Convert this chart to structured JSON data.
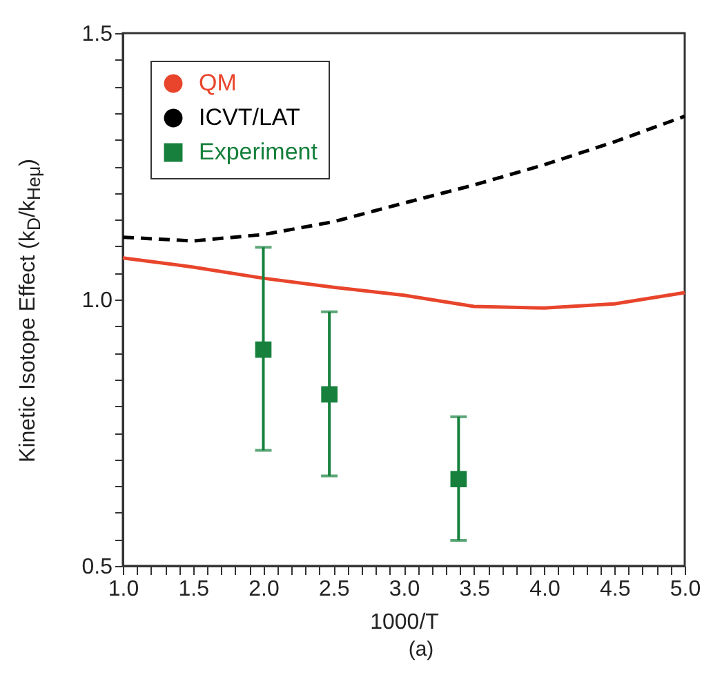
{
  "chart_data": {
    "type": "line",
    "xlabel": "1000/T",
    "ylabel": "Kinetic Isotope Effect (k$_{D}$/k$_{Heμ}$)",
    "annotations": [
      "(a)"
    ],
    "xlim": [
      1.0,
      5.0
    ],
    "ylim": [
      0.5,
      1.5
    ],
    "xticks": [
      {
        "value": 1,
        "label": "1.0"
      },
      {
        "value": 1.1,
        "label": null
      },
      {
        "value": 1.2,
        "label": null
      },
      {
        "value": 1.3,
        "label": null
      },
      {
        "value": 1.4,
        "label": null
      },
      {
        "value": 1.5,
        "label": "1.5"
      },
      {
        "value": 1.6,
        "label": null
      },
      {
        "value": 1.7,
        "label": null
      },
      {
        "value": 1.8,
        "label": null
      },
      {
        "value": 1.9,
        "label": null
      },
      {
        "value": 2,
        "label": "2.0"
      },
      {
        "value": 2.1,
        "label": null
      },
      {
        "value": 2.2,
        "label": null
      },
      {
        "value": 2.3,
        "label": null
      },
      {
        "value": 2.4,
        "label": null
      },
      {
        "value": 2.5,
        "label": "2.5"
      },
      {
        "value": 2.6,
        "label": null
      },
      {
        "value": 2.7,
        "label": null
      },
      {
        "value": 2.8,
        "label": null
      },
      {
        "value": 2.9,
        "label": null
      },
      {
        "value": 3,
        "label": "3.0"
      },
      {
        "value": 3.1,
        "label": null
      },
      {
        "value": 3.2,
        "label": null
      },
      {
        "value": 3.3,
        "label": null
      },
      {
        "value": 3.4,
        "label": null
      },
      {
        "value": 3.5,
        "label": "3.5"
      },
      {
        "value": 3.6,
        "label": null
      },
      {
        "value": 3.7,
        "label": null
      },
      {
        "value": 3.8,
        "label": null
      },
      {
        "value": 3.9,
        "label": null
      },
      {
        "value": 4,
        "label": "4.0"
      },
      {
        "value": 4.1,
        "label": null
      },
      {
        "value": 4.2,
        "label": null
      },
      {
        "value": 4.3,
        "label": null
      },
      {
        "value": 4.4,
        "label": null
      },
      {
        "value": 4.5,
        "label": "4.5"
      },
      {
        "value": 4.6,
        "label": null
      },
      {
        "value": 4.7,
        "label": null
      },
      {
        "value": 4.8,
        "label": null
      },
      {
        "value": 4.9,
        "label": null
      },
      {
        "value": 5,
        "label": "5.0"
      }
    ],
    "yticks": [
      {
        "value": 0.5,
        "label": "0.5"
      },
      {
        "value": 0.55,
        "label": null
      },
      {
        "value": 0.6,
        "label": null
      },
      {
        "value": 0.65,
        "label": null
      },
      {
        "value": 0.7,
        "label": null
      },
      {
        "value": 0.75,
        "label": null
      },
      {
        "value": 0.8,
        "label": null
      },
      {
        "value": 0.85,
        "label": null
      },
      {
        "value": 0.9,
        "label": null
      },
      {
        "value": 0.95,
        "label": null
      },
      {
        "value": 1,
        "label": "1.0"
      },
      {
        "value": 1.05,
        "label": null
      },
      {
        "value": 1.1,
        "label": null
      },
      {
        "value": 1.15,
        "label": null
      },
      {
        "value": 1.2,
        "label": null
      },
      {
        "value": 1.25,
        "label": null
      },
      {
        "value": 1.3,
        "label": null
      },
      {
        "value": 1.35,
        "label": null
      },
      {
        "value": 1.4,
        "label": null
      },
      {
        "value": 1.45,
        "label": null
      },
      {
        "value": 1.5,
        "label": "1.5"
      }
    ],
    "grid": false,
    "legend": "top left",
    "series": [
      {
        "name": "QM",
        "color": "#e8452c",
        "line_style": "solid",
        "x": [
          1.0,
          1.5,
          2.0,
          2.5,
          3.0,
          3.5,
          4.0,
          4.5,
          5.0
        ],
        "values": [
          1.078,
          1.061,
          1.04,
          1.023,
          1.008,
          0.987,
          0.984,
          0.992,
          1.013
        ]
      },
      {
        "name": "ICVT/LAT",
        "color": "#000000",
        "line_style": "dashed",
        "x": [
          1.0,
          1.5,
          2.0,
          2.5,
          3.0,
          3.5,
          4.0,
          4.5,
          5.0
        ],
        "values": [
          1.117,
          1.11,
          1.122,
          1.146,
          1.181,
          1.215,
          1.253,
          1.296,
          1.344
        ]
      },
      {
        "name": "Experiment",
        "type": "scatter",
        "color": "#16803c",
        "marker": "square",
        "x": [
          2.0,
          2.47,
          3.39
        ],
        "values": [
          0.906,
          0.822,
          0.663
        ],
        "errors": [
          [
            0.717,
            1.098
          ],
          [
            0.669,
            0.977
          ],
          [
            0.548,
            0.78
          ]
        ]
      }
    ]
  }
}
